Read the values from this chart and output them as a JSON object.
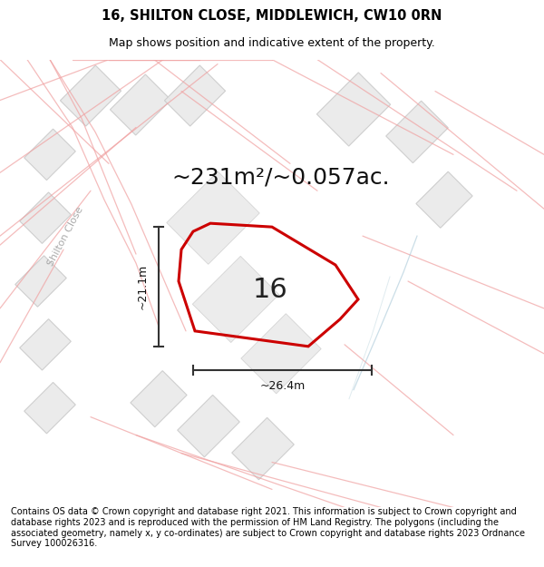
{
  "title": "16, SHILTON CLOSE, MIDDLEWICH, CW10 0RN",
  "subtitle": "Map shows position and indicative extent of the property.",
  "area_label": "~231m²/~0.057ac.",
  "plot_number": "16",
  "dim_vertical": "~21.1m",
  "dim_horizontal": "~26.4m",
  "road_label": "Shilton Close",
  "footer": "Contains OS data © Crown copyright and database right 2021. This information is subject to Crown copyright and database rights 2023 and is reproduced with the permission of HM Land Registry. The polygons (including the associated geometry, namely x, y co-ordinates) are subject to Crown copyright and database rights 2023 Ordnance Survey 100026316.",
  "bg_color": "#ffffff",
  "red_color": "#cc0000",
  "building_fill": "#e8e8e8",
  "building_edge": "#c8c8c8",
  "road_line_color": "#f0a0a0",
  "road_line_alpha": 0.7,
  "dim_line_color": "#333333",
  "title_fontsize": 10.5,
  "subtitle_fontsize": 9,
  "area_fontsize": 18,
  "plot_num_fontsize": 22,
  "dim_fontsize": 9,
  "road_label_fontsize": 8,
  "footer_fontsize": 7.0
}
